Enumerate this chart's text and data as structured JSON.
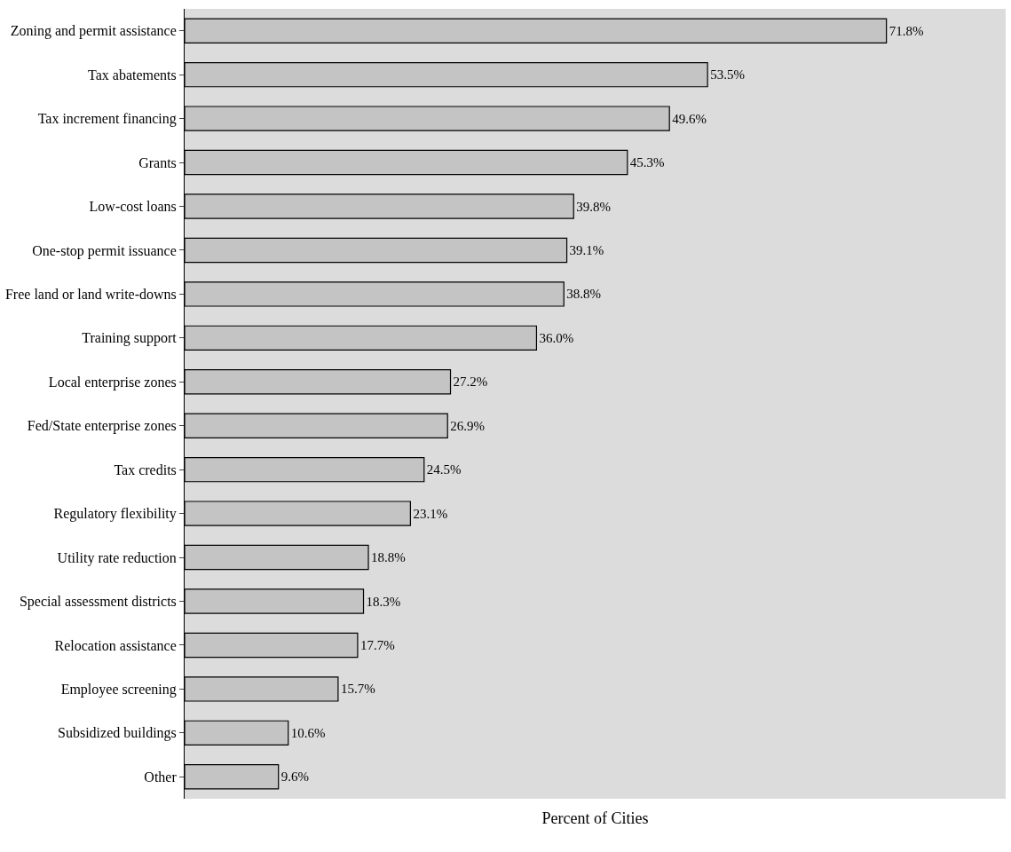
{
  "chart_data": {
    "type": "bar",
    "orientation": "horizontal",
    "xlabel": "Percent of Cities",
    "categories": [
      "Zoning and permit assistance",
      "Tax abatements",
      "Tax increment financing",
      "Grants",
      "Low-cost loans",
      "One-stop permit issuance",
      "Free land or land write-downs",
      "Training support",
      "Local enterprise zones",
      "Fed/State enterprise zones",
      "Tax credits",
      "Regulatory flexibility",
      "Utility rate reduction",
      "Special assessment districts",
      "Relocation assistance",
      "Employee screening",
      "Subsidized buildings",
      "Other"
    ],
    "values": [
      71.8,
      53.5,
      49.6,
      45.3,
      39.8,
      39.1,
      38.8,
      36.0,
      27.2,
      26.9,
      24.5,
      23.1,
      18.8,
      18.3,
      17.7,
      15.7,
      10.6,
      9.6
    ],
    "value_labels": [
      "71.8%",
      "53.5%",
      "49.6%",
      "45.3%",
      "39.8%",
      "39.1%",
      "38.8%",
      "36.0%",
      "27.2%",
      "26.9%",
      "24.5%",
      "23.1%",
      "18.8%",
      "18.3%",
      "17.7%",
      "15.7%",
      "10.6%",
      "9.6%"
    ],
    "color": "#c4c4c4",
    "xlim": [
      0,
      84
    ],
    "tick_labels": "y",
    "grid": false,
    "legend": false
  }
}
